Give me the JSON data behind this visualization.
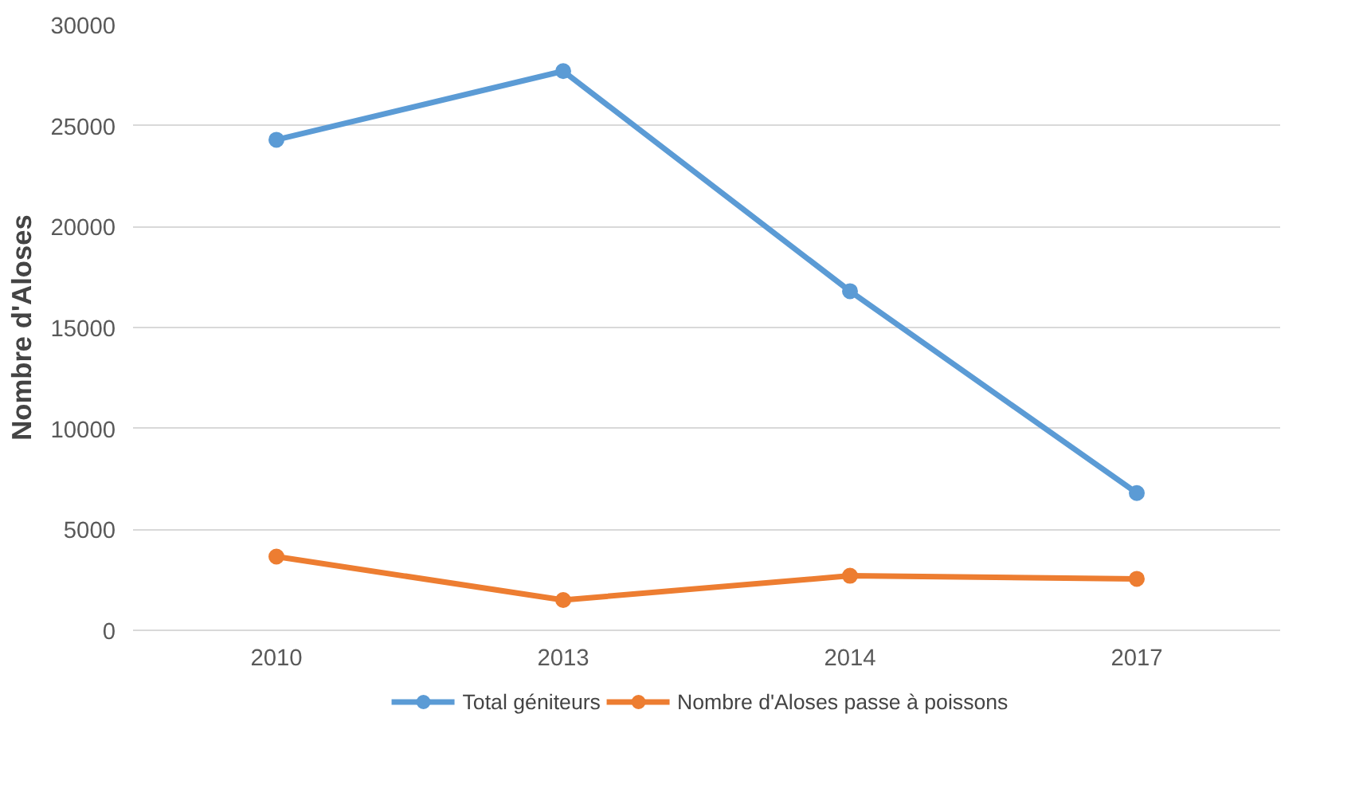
{
  "chart_data": {
    "type": "line",
    "ylabel": "Nombre d'Aloses",
    "categories": [
      "2010",
      "2013",
      "2014",
      "2017"
    ],
    "series": [
      {
        "name": "Total géniteurs",
        "color": "#5b9bd5",
        "values": [
          24300,
          27700,
          16800,
          6800
        ]
      },
      {
        "name": "Nombre d'Aloses passe à poissons",
        "color": "#ed7d31",
        "values": [
          3650,
          1500,
          2700,
          2550
        ]
      }
    ],
    "ylim": [
      0,
      30000
    ],
    "yticks": [
      0,
      5000,
      10000,
      15000,
      20000,
      25000,
      30000
    ],
    "grid": "y",
    "legend": "bottom",
    "marker": "circle",
    "line_style": "solid"
  }
}
